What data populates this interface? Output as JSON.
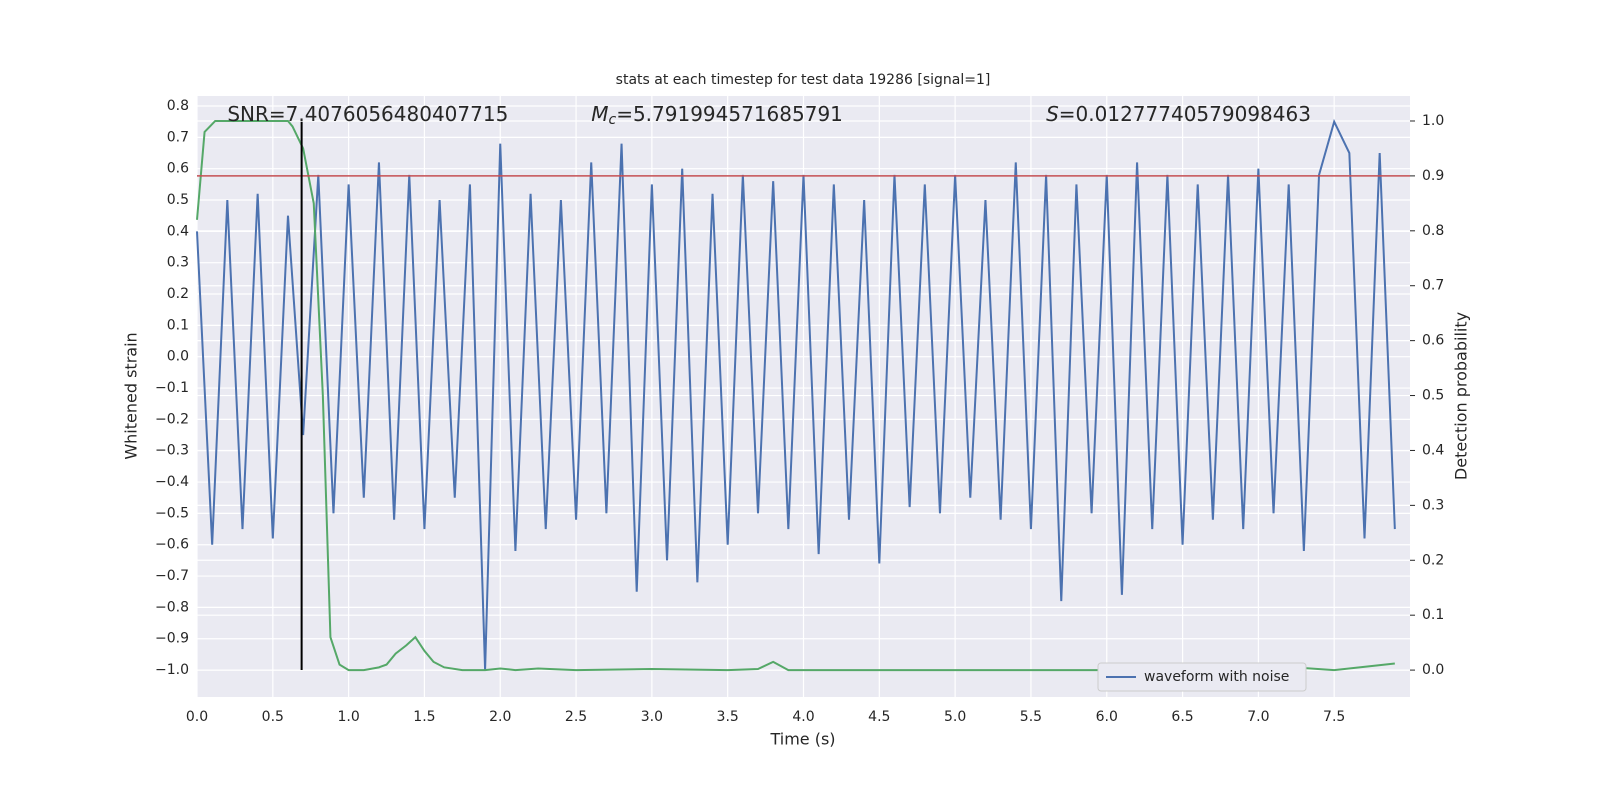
{
  "chart_data": {
    "type": "line",
    "title": "stats at each timestep for test data 19286 [signal=1]",
    "xlabel": "Time (s)",
    "ylabel": "Whitened strain",
    "y2label": "Detection probability",
    "xlim": [
      0,
      8.0
    ],
    "ylim": [
      -1.086,
      0.832
    ],
    "y2lim": [
      -0.049,
      1.0455
    ],
    "xticks": [
      {
        "value": 0,
        "label": "0.0"
      },
      {
        "value": 0.5,
        "label": "0.5"
      },
      {
        "value": 1,
        "label": "1.0"
      },
      {
        "value": 1.5,
        "label": "1.5"
      },
      {
        "value": 2,
        "label": "2.0"
      },
      {
        "value": 2.5,
        "label": "2.5"
      },
      {
        "value": 3,
        "label": "3.0"
      },
      {
        "value": 3.5,
        "label": "3.5"
      },
      {
        "value": 4,
        "label": "4.0"
      },
      {
        "value": 4.5,
        "label": "4.5"
      },
      {
        "value": 5,
        "label": "5.0"
      },
      {
        "value": 5.5,
        "label": "5.5"
      },
      {
        "value": 6,
        "label": "6.0"
      },
      {
        "value": 6.5,
        "label": "6.5"
      },
      {
        "value": 7,
        "label": "7.0"
      },
      {
        "value": 7.5,
        "label": "7.5"
      }
    ],
    "yticks": [
      {
        "value": -1,
        "label": "−1.0"
      },
      {
        "value": -0.9,
        "label": "−0.9"
      },
      {
        "value": -0.8,
        "label": "−0.8"
      },
      {
        "value": -0.7,
        "label": "−0.7"
      },
      {
        "value": -0.6,
        "label": "−0.6"
      },
      {
        "value": -0.5,
        "label": "−0.5"
      },
      {
        "value": -0.4,
        "label": "−0.4"
      },
      {
        "value": -0.3,
        "label": "−0.3"
      },
      {
        "value": -0.2,
        "label": "−0.2"
      },
      {
        "value": -0.1,
        "label": "−0.1"
      },
      {
        "value": 0,
        "label": "0.0"
      },
      0.1,
      0.2,
      0.3,
      0.4,
      0.5,
      0.6,
      0.7,
      0.8
    ],
    "y2ticks": [
      {
        "value": 0,
        "label": "0.0"
      },
      0.1,
      0.2,
      0.3,
      0.4,
      0.5,
      0.6,
      0.7,
      0.8,
      0.9,
      {
        "value": 1,
        "label": "1.0"
      }
    ],
    "grid": true,
    "legend": "lower right",
    "threshold": 0.9,
    "threshold_color": "#c44e52",
    "marker_x": 0.69,
    "marker_ylim": [
      -1.0,
      0.75
    ],
    "annotations": [
      {
        "text": "SNR=7.4076056480407715",
        "x": 0.2
      },
      {
        "symbol": "M",
        "subscript": "c",
        "text": "=5.791994571685791",
        "x": 2.6
      },
      {
        "symbol": "S",
        "text": "=0.01277740579098463",
        "x": 5.6
      }
    ],
    "series": [
      {
        "name": "waveform with noise",
        "color": "#4c72b0",
        "x": [
          0,
          0.1,
          0.2,
          0.3,
          0.4,
          0.5,
          0.6,
          0.7,
          0.8,
          0.9,
          1,
          1.1,
          1.2,
          1.3,
          1.4,
          1.5,
          1.6,
          1.7,
          1.8,
          1.9,
          2,
          2.1,
          2.2,
          2.3,
          2.4,
          2.5,
          2.6,
          2.7,
          2.8,
          2.9,
          3,
          3.1,
          3.2,
          3.3,
          3.4,
          3.5,
          3.6,
          3.7,
          3.8,
          3.9,
          4,
          4.1,
          4.2,
          4.3,
          4.4,
          4.5,
          4.6,
          4.7,
          4.8,
          4.9,
          5,
          5.1,
          5.2,
          5.3,
          5.4,
          5.5,
          5.6,
          5.7,
          5.8,
          5.9,
          6,
          6.1,
          6.2,
          6.3,
          6.4,
          6.5,
          6.6,
          6.7,
          6.8,
          6.9,
          7,
          7.1,
          7.2,
          7.3,
          7.4,
          7.5,
          7.6,
          7.7,
          7.8,
          7.9
        ],
        "values": [
          0.4,
          -0.6,
          0.5,
          -0.55,
          0.52,
          -0.58,
          0.45,
          -0.25,
          0.58,
          -0.5,
          0.55,
          -0.45,
          0.62,
          -0.52,
          0.58,
          -0.55,
          0.5,
          -0.45,
          0.55,
          -1.0,
          0.68,
          -0.62,
          0.52,
          -0.55,
          0.5,
          -0.52,
          0.62,
          -0.5,
          0.68,
          -0.75,
          0.55,
          -0.65,
          0.6,
          -0.72,
          0.52,
          -0.6,
          0.58,
          -0.5,
          0.56,
          -0.55,
          0.58,
          -0.63,
          0.55,
          -0.52,
          0.5,
          -0.66,
          0.58,
          -0.48,
          0.55,
          -0.5,
          0.58,
          -0.45,
          0.5,
          -0.52,
          0.62,
          -0.55,
          0.58,
          -0.78,
          0.55,
          -0.5,
          0.58,
          -0.76,
          0.62,
          -0.55,
          0.58,
          -0.6,
          0.55,
          -0.52,
          0.58,
          -0.55,
          0.6,
          -0.5,
          0.55,
          -0.62,
          0.58,
          0.75,
          0.65,
          -0.58,
          0.65,
          -0.55
        ]
      },
      {
        "color": "#55a868",
        "axis": "y2",
        "x": [
          0,
          0.05,
          0.12,
          0.3,
          0.6,
          0.63,
          0.7,
          0.77,
          0.83,
          0.88,
          0.94,
          1.0,
          1.1,
          1.2,
          1.25,
          1.31,
          1.38,
          1.44,
          1.5,
          1.56,
          1.63,
          1.75,
          1.9,
          2.0,
          2.1,
          2.25,
          2.5,
          3.0,
          3.5,
          3.7,
          3.8,
          3.9,
          4.5,
          5.0,
          6.0,
          7.0,
          7.13,
          7.5,
          7.9
        ],
        "values": [
          0.82,
          0.98,
          1.0,
          1.0,
          1.0,
          0.99,
          0.95,
          0.85,
          0.5,
          0.06,
          0.01,
          0.0,
          0.0,
          0.005,
          0.01,
          0.03,
          0.045,
          0.06,
          0.035,
          0.015,
          0.005,
          0.0,
          0.0,
          0.003,
          0.0,
          0.003,
          0.0,
          0.002,
          0.0,
          0.002,
          0.015,
          0.0,
          0.0,
          0.0,
          0.0,
          0.0,
          0.007,
          0.0,
          0.012
        ]
      }
    ]
  }
}
